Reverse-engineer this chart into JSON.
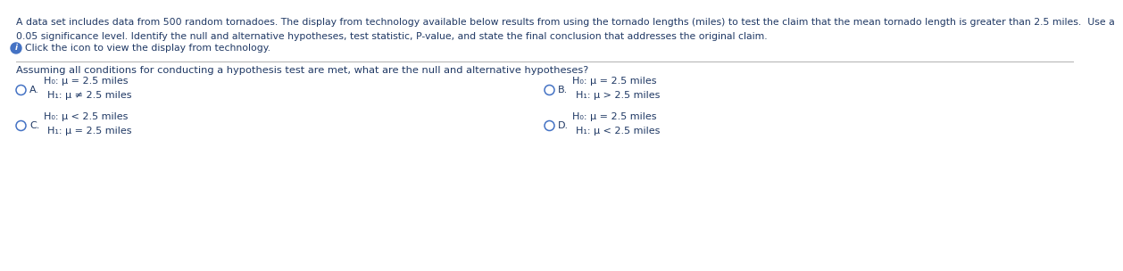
{
  "bg_color": "#ffffff",
  "header_line1": "A data set includes data from 500 random tornadoes. The display from technology available below results from using the tornado lengths (miles) to test the claim that the mean tornado length is greater than 2.5 miles.  Use a",
  "header_line2": "0.05 significance level. Identify the null and alternative hypotheses, test statistic, P-value, and state the final conclusion that addresses the original claim.",
  "info_text": "Click the icon to view the display from technology.",
  "question_text": "Assuming all conditions for conducting a hypothesis test are met, what are the null and alternative hypotheses?",
  "text_color": "#1f3864",
  "circle_color": "#4472c4",
  "options": [
    {
      "label": "A.",
      "line1": "H₀: μ = 2.5 miles",
      "line2": "H₁: μ ≠ 2.5 miles"
    },
    {
      "label": "B.",
      "line1": "H₀: μ = 2.5 miles",
      "line2": "H₁: μ > 2.5 miles"
    },
    {
      "label": "C.",
      "line1": "H₀: μ < 2.5 miles",
      "line2": "H₁: μ = 2.5 miles"
    },
    {
      "label": "D.",
      "line1": "H₀: μ = 2.5 miles",
      "line2": "H₁: μ < 2.5 miles"
    }
  ],
  "font_size_header": 7.8,
  "font_size_question": 8.2,
  "font_size_option": 8.0,
  "font_size_info": 7.8
}
